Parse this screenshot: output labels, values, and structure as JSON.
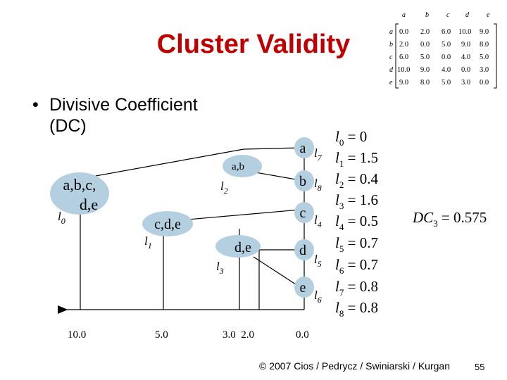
{
  "title": "Cluster Validity",
  "bullet": {
    "marker": "•",
    "text": "Divisive Coefficient (DC)"
  },
  "matrix": {
    "columns": [
      "a",
      "b",
      "c",
      "d",
      "e"
    ],
    "rows": [
      {
        "label": "a",
        "values": [
          "0.0",
          "2.0",
          "6.0",
          "10.0",
          "9.0"
        ]
      },
      {
        "label": "b",
        "values": [
          "2.0",
          "0.0",
          "5.0",
          "9.0",
          "8.0"
        ]
      },
      {
        "label": "c",
        "values": [
          "6.0",
          "5.0",
          "0.0",
          "4.0",
          "5.0"
        ]
      },
      {
        "label": "d",
        "values": [
          "10.0",
          "9.0",
          "4.0",
          "0.0",
          "3.0"
        ]
      },
      {
        "label": "e",
        "values": [
          "9.0",
          "8.0",
          "5.0",
          "3.0",
          "0.0"
        ]
      }
    ]
  },
  "dendrogram": {
    "nodes": {
      "abcde_line1": "a,b,c,",
      "abcde_line2": "d,e",
      "ab": "a,b",
      "cde": "c,d,e",
      "de": "d,e",
      "leaf_a": "a",
      "leaf_b": "b",
      "leaf_c": "c",
      "leaf_d": "d",
      "leaf_e": "e"
    },
    "level_labels": {
      "l0": {
        "base": "l",
        "sub": "0"
      },
      "l1": {
        "base": "l",
        "sub": "1"
      },
      "l2": {
        "base": "l",
        "sub": "2"
      },
      "l3": {
        "base": "l",
        "sub": "3"
      },
      "l4": {
        "base": "l",
        "sub": "4"
      },
      "l5": {
        "base": "l",
        "sub": "5"
      },
      "l6": {
        "base": "l",
        "sub": "6"
      },
      "l7": {
        "base": "l",
        "sub": "7"
      },
      "l8": {
        "base": "l",
        "sub": "8"
      }
    },
    "axis_ticks": [
      "10.0",
      "5.0",
      "3.0  2.0",
      "0.0"
    ]
  },
  "level_values": [
    {
      "sub": "0",
      "value": "0"
    },
    {
      "sub": "1",
      "value": "1.5"
    },
    {
      "sub": "2",
      "value": "0.4"
    },
    {
      "sub": "3",
      "value": "1.6"
    },
    {
      "sub": "4",
      "value": "0.5"
    },
    {
      "sub": "5",
      "value": "0.7"
    },
    {
      "sub": "6",
      "value": "0.7"
    },
    {
      "sub": "7",
      "value": "0.8"
    },
    {
      "sub": "8",
      "value": "0.8"
    }
  ],
  "dc_formula": {
    "base": "DC",
    "sub": "3",
    "value": "0.575"
  },
  "footer": "© 2007 Cios / Pedrycz / Swiniarski / Kurgan",
  "page_number": "55"
}
